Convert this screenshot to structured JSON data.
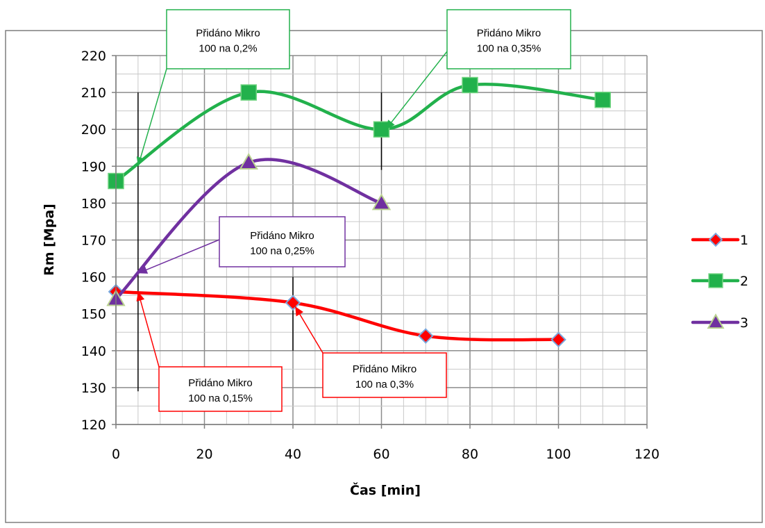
{
  "chart_data": {
    "type": "line",
    "title": "",
    "xlabel": "Čas [min]",
    "ylabel": "Rm [Mpa]",
    "xlim": [
      0,
      120
    ],
    "ylim": [
      120,
      220
    ],
    "xticks": [
      0,
      20,
      40,
      60,
      80,
      100,
      120
    ],
    "yticks": [
      120,
      130,
      140,
      150,
      160,
      170,
      180,
      190,
      200,
      210,
      220
    ],
    "grid": true,
    "legend_position": "right",
    "series": [
      {
        "name": "1",
        "color": "#ff0000",
        "marker": "diamond",
        "x": [
          0,
          40,
          70,
          100
        ],
        "y": [
          156,
          153,
          144,
          143
        ]
      },
      {
        "name": "2",
        "color": "#22b14c",
        "marker": "square",
        "x": [
          0,
          30,
          60,
          80,
          110
        ],
        "y": [
          186,
          210,
          200,
          212,
          208
        ]
      },
      {
        "name": "3",
        "color": "#7030a0",
        "marker": "triangle",
        "x": [
          0,
          30,
          60
        ],
        "y": [
          154,
          191,
          180
        ]
      }
    ],
    "markers_vertical": [
      {
        "x": 5,
        "y_from": 129,
        "y_to": 210
      },
      {
        "x": 40,
        "y_from": 140,
        "y_to": 160
      },
      {
        "x": 60,
        "y_from": 189,
        "y_to": 210
      }
    ],
    "annotations": [
      {
        "line1": "Přidáno Mikro",
        "line2": "100 na 0,15%",
        "color": "#ff0000",
        "point_x": 5,
        "point_y": 156
      },
      {
        "line1": "Přidáno Mikro",
        "line2": "100 na 0,2%",
        "color": "#22b14c",
        "point_x": 5,
        "point_y": 190
      },
      {
        "line1": "Přidáno Mikro",
        "line2": "100 na 0,25%",
        "color": "#7030a0",
        "point_x": 5,
        "point_y": 161
      },
      {
        "line1": "Přidáno Mikro",
        "line2": "100 na 0,3%",
        "color": "#ff0000",
        "point_x": 40.5,
        "point_y": 152
      },
      {
        "line1": "Přidáno Mikro",
        "line2": "100 na 0,35%",
        "color": "#22b14c",
        "point_x": 61,
        "point_y": 200
      }
    ]
  }
}
